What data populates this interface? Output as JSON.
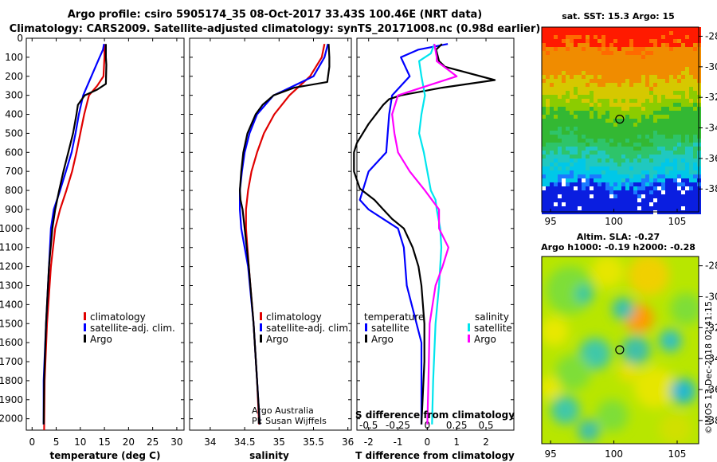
{
  "chart_data": {
    "type": "line",
    "title_line1": "Argo profile: csiro 5905174_35 08-Oct-2017 33.43S 100.46E (NRT data)",
    "title_line2": "Climatology: CARS2009. Satellite-adjusted climatology: synTS_20171008.nc (0.98d earlier)",
    "depth_ticks": [
      0,
      100,
      200,
      300,
      400,
      500,
      600,
      700,
      800,
      900,
      1000,
      1100,
      1200,
      1300,
      1400,
      1500,
      1600,
      1700,
      1800,
      1900,
      2000
    ],
    "ylim": [
      0,
      2060
    ],
    "legend": {
      "climatology": "climatology",
      "satellite": "satellite-adj. clim.",
      "satellite_short": "satellite",
      "argo": "Argo",
      "temperature": "temperature",
      "salinity": "salinity"
    },
    "attribution": {
      "line1": "Argo Australia",
      "line2": "PI: Susan Wijffels"
    },
    "stamp": "©IMOS 13-Dec-2018 02:41:15",
    "colors": {
      "clim": "#e00000",
      "sat": "#0000ff",
      "argo": "#000000",
      "sal_sat": "#00e5ee",
      "sal_argo": "#ff00ff"
    },
    "panels": [
      {
        "name": "temperature",
        "xlabel": "temperature (deg C)",
        "xlim": [
          -1.2,
          31.5
        ],
        "xticks": [
          0,
          5,
          10,
          15,
          20,
          25,
          30
        ],
        "xticklabels": [
          "0",
          "5",
          "10",
          "15",
          "20",
          "25",
          "30"
        ],
        "series": [
          {
            "name": "climatology",
            "depth": [
              30,
              100,
              200,
              250,
              300,
              400,
              500,
              600,
              700,
              800,
              900,
              1000,
              1200,
              1500,
              1800,
              2060
            ],
            "values": [
              15.0,
              15.0,
              14.8,
              13.5,
              11.8,
              10.8,
              10.0,
              9.2,
              8.3,
              7.1,
              5.8,
              4.8,
              3.9,
              3.1,
              2.6,
              2.5
            ]
          },
          {
            "name": "satellite",
            "depth": [
              30,
              60,
              100,
              200,
              300,
              400,
              500,
              600,
              700,
              800,
              900,
              1000,
              1200,
              1500,
              1800,
              2030
            ],
            "values": [
              14.9,
              14.7,
              14.0,
              12.3,
              10.6,
              9.7,
              9.0,
              8.2,
              7.0,
              5.8,
              4.5,
              3.9,
              3.5,
              2.9,
              2.4,
              2.4
            ]
          },
          {
            "name": "argo",
            "depth": [
              30,
              100,
              140,
              240,
              270,
              300,
              350,
              400,
              500,
              600,
              700,
              800,
              900,
              1000,
              1200,
              1500,
              1800,
              2030
            ],
            "values": [
              15.3,
              15.3,
              15.4,
              15.3,
              13.5,
              10.9,
              9.5,
              9.2,
              8.5,
              7.5,
              6.5,
              5.6,
              4.8,
              4.2,
              3.5,
              2.9,
              2.5,
              2.4
            ]
          }
        ]
      },
      {
        "name": "salinity",
        "xlabel": "salinity",
        "xlim": [
          33.7,
          36.05
        ],
        "xticks": [
          34,
          34.5,
          35,
          35.5,
          36
        ],
        "xticklabels": [
          "34",
          "34.5",
          "35",
          "35.5",
          "36"
        ],
        "series": [
          {
            "name": "climatology",
            "depth": [
              30,
              100,
              200,
              300,
              400,
              500,
              600,
              700,
              800,
              900,
              1000,
              1200,
              1500,
              1800,
              2030
            ],
            "values": [
              35.66,
              35.62,
              35.45,
              35.15,
              34.93,
              34.78,
              34.68,
              34.6,
              34.55,
              34.52,
              34.52,
              34.56,
              34.63,
              34.68,
              34.71
            ]
          },
          {
            "name": "satellite",
            "depth": [
              30,
              100,
              200,
              270,
              300,
              350,
              400,
              500,
              600,
              700,
              800,
              900,
              1000,
              1200,
              1500,
              1800,
              2030
            ],
            "values": [
              35.71,
              35.66,
              35.5,
              35.1,
              34.92,
              34.8,
              34.68,
              34.57,
              34.5,
              34.46,
              34.43,
              34.43,
              34.45,
              34.55,
              34.63,
              34.68,
              34.72
            ]
          },
          {
            "name": "argo",
            "depth": [
              30,
              100,
              150,
              230,
              260,
              300,
              350,
              400,
              500,
              600,
              700,
              800,
              850,
              900,
              1000,
              1200,
              1500,
              1800,
              2030
            ],
            "values": [
              35.72,
              35.73,
              35.73,
              35.7,
              35.22,
              34.92,
              34.76,
              34.66,
              34.54,
              34.48,
              34.45,
              34.43,
              34.44,
              34.47,
              34.5,
              34.56,
              34.63,
              34.68,
              34.72
            ]
          }
        ]
      },
      {
        "name": "difference",
        "xlabel": "T difference from climatology",
        "s_label": "S difference from climatology",
        "xlim": [
          -2.4,
          2.95
        ],
        "xticks": [
          -2,
          -1,
          0,
          1,
          2
        ],
        "xticklabels": [
          "-2",
          "-1",
          "0",
          "1",
          "2"
        ],
        "s_xlim": [
          -0.6,
          0.7375
        ],
        "s_xticks": [
          -0.5,
          -0.25,
          0,
          0.25,
          0.5
        ],
        "s_xticklabels": [
          "-0.5",
          "-0.25",
          "0",
          "0.25",
          "0.5"
        ],
        "series": [
          {
            "name": "T satellite",
            "axis": "T",
            "color": "sat",
            "depth": [
              30,
              60,
              100,
              200,
              300,
              400,
              600,
              700,
              800,
              850,
              900,
              950,
              1000,
              1100,
              1300,
              1600,
              2030
            ],
            "values": [
              0.7,
              -0.3,
              -0.9,
              -0.6,
              -1.2,
              -1.3,
              -1.4,
              -2.0,
              -2.2,
              -2.3,
              -2.0,
              -1.5,
              -1.0,
              -0.8,
              -0.7,
              -0.2,
              -0.2
            ]
          },
          {
            "name": "T argo",
            "axis": "T",
            "color": "argo",
            "depth": [
              30,
              60,
              120,
              150,
              220,
              260,
              300,
              320,
              350,
              450,
              550,
              600,
              700,
              790,
              850,
              900,
              950,
              1000,
              1100,
              1200,
              1300,
              1500,
              1700,
              2030
            ],
            "values": [
              0.5,
              0.3,
              0.4,
              0.6,
              2.3,
              0.5,
              -0.9,
              -1.3,
              -1.5,
              -2.0,
              -2.4,
              -2.5,
              -2.5,
              -2.3,
              -1.8,
              -1.5,
              -1.2,
              -0.8,
              -0.5,
              -0.3,
              -0.2,
              -0.1,
              -0.1,
              -0.2
            ]
          },
          {
            "name": "S satellite",
            "axis": "S",
            "color": "sal_sat",
            "depth": [
              30,
              80,
              120,
              200,
              300,
              400,
              500,
              600,
              700,
              800,
              850,
              900,
              1000,
              1100,
              1300,
              1500,
              1800,
              2030
            ],
            "values": [
              0.06,
              0.03,
              -0.07,
              -0.05,
              -0.02,
              -0.05,
              -0.07,
              -0.03,
              0.0,
              0.03,
              0.07,
              0.08,
              0.11,
              0.12,
              0.1,
              0.07,
              0.05,
              0.04
            ]
          },
          {
            "name": "S argo",
            "axis": "S",
            "color": "sal_argo",
            "depth": [
              30,
              100,
              120,
              200,
              250,
              300,
              400,
              500,
              600,
              700,
              800,
              900,
              1000,
              1100,
              1200,
              1300,
              1500,
              1800,
              2030
            ],
            "values": [
              0.06,
              0.08,
              0.08,
              0.25,
              0.0,
              -0.25,
              -0.3,
              -0.28,
              -0.25,
              -0.15,
              -0.02,
              0.1,
              0.1,
              0.18,
              0.13,
              0.07,
              0.02,
              0.01,
              0.0
            ]
          }
        ]
      }
    ],
    "maps": {
      "lon_ticks": [
        95,
        100,
        105
      ],
      "lat_ticks": [
        -28,
        -30,
        -32,
        -34,
        -36,
        -38
      ],
      "lon_range": [
        94.3,
        106.7
      ],
      "lat_range": [
        -27.4,
        -39.5
      ],
      "profile_location": {
        "lon": 100.46,
        "lat": -33.43
      },
      "sst": {
        "title": "sat. SST: 15.3 Argo: 15"
      },
      "sla": {
        "title": "Altim. SLA: -0.27",
        "subtitle": "Argo h1000: -0.19 h2000: -0.28"
      }
    }
  }
}
